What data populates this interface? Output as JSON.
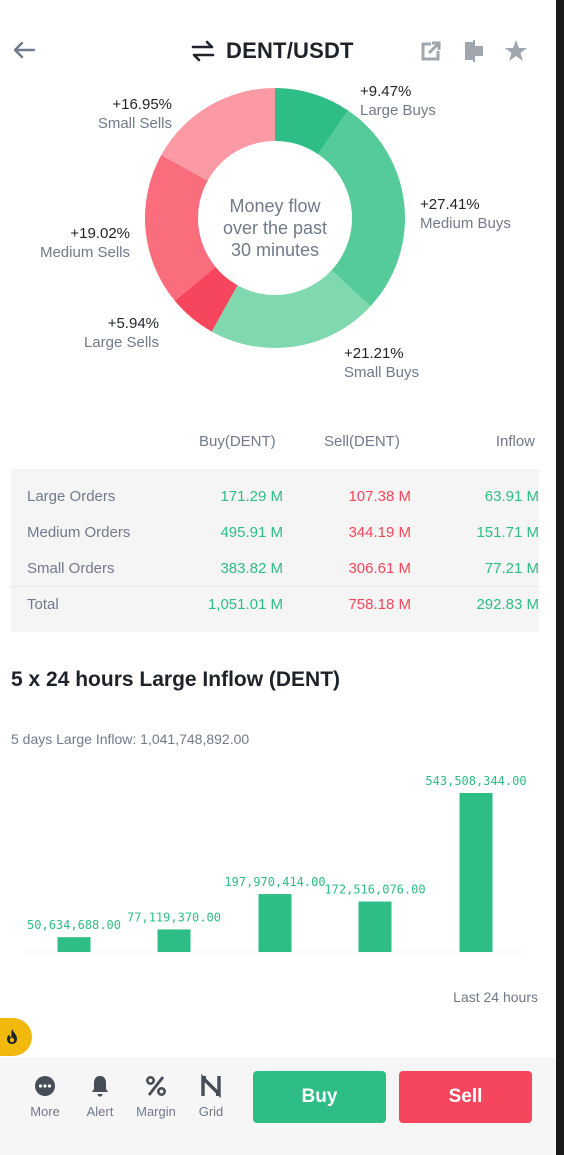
{
  "header": {
    "title": "DENT/USDT"
  },
  "money_flow": {
    "center_text": [
      "Money flow",
      "over the past",
      "30 minutes"
    ],
    "segments": [
      {
        "pct": "+9.47%",
        "name": "Large Buys",
        "value": 9.47,
        "color": "#2ebd85"
      },
      {
        "pct": "+27.41%",
        "name": "Medium Buys",
        "value": 27.41,
        "color": "#54cb98"
      },
      {
        "pct": "+21.21%",
        "name": "Small Buys",
        "value": 21.21,
        "color": "#7fd8ae"
      },
      {
        "pct": "+5.94%",
        "name": "Large Sells",
        "value": 5.94,
        "color": "#f6465d"
      },
      {
        "pct": "+19.02%",
        "name": "Medium Sells",
        "value": 19.02,
        "color": "#fa6d7c"
      },
      {
        "pct": "+16.95%",
        "name": "Small Sells",
        "value": 16.95,
        "color": "#fb9aa4"
      }
    ]
  },
  "orders_table": {
    "headers": {
      "buy": "Buy(DENT)",
      "sell": "Sell(DENT)",
      "inflow": "Inflow"
    },
    "rows": [
      {
        "label": "Large Orders",
        "buy": "171.29 M",
        "sell": "107.38 M",
        "inflow": "63.91 M"
      },
      {
        "label": "Medium Orders",
        "buy": "495.91 M",
        "sell": "344.19 M",
        "inflow": "151.71 M"
      },
      {
        "label": "Small Orders",
        "buy": "383.82 M",
        "sell": "306.61 M",
        "inflow": "77.21 M"
      },
      {
        "label": "Total",
        "buy": "1,051.01 M",
        "sell": "758.18 M",
        "inflow": "292.83 M"
      }
    ]
  },
  "inflow_section": {
    "title": "5 x 24 hours Large Inflow (DENT)",
    "summary": "5 days Large Inflow: 1,041,748,892.00",
    "footer_label": "Last 24 hours"
  },
  "chart_data": {
    "type": "bar",
    "title": "5 x 24 hours Large Inflow (DENT)",
    "categories": [
      "",
      "",
      "",
      "",
      ""
    ],
    "values": [
      50634688.0,
      77119370.0,
      197970414.0,
      172516076.0,
      543508344.0
    ],
    "value_labels": [
      "50,634,688.00",
      "77,119,370.00",
      "197,970,414.00",
      "172,516,076.00",
      "543,508,344.00"
    ],
    "xlabel": "",
    "ylabel": "",
    "color": "#2ebd85",
    "ylim": [
      0,
      543508344
    ]
  },
  "bottom_nav": {
    "items": [
      {
        "label": "More",
        "icon": "more-icon"
      },
      {
        "label": "Alert",
        "icon": "bell-icon"
      },
      {
        "label": "Margin",
        "icon": "percent-icon"
      },
      {
        "label": "Grid",
        "icon": "grid-bot-icon"
      }
    ],
    "buy_label": "Buy",
    "sell_label": "Sell"
  },
  "colors": {
    "green": "#2ebd85",
    "red": "#f6465d",
    "gold": "#f0b90b"
  }
}
